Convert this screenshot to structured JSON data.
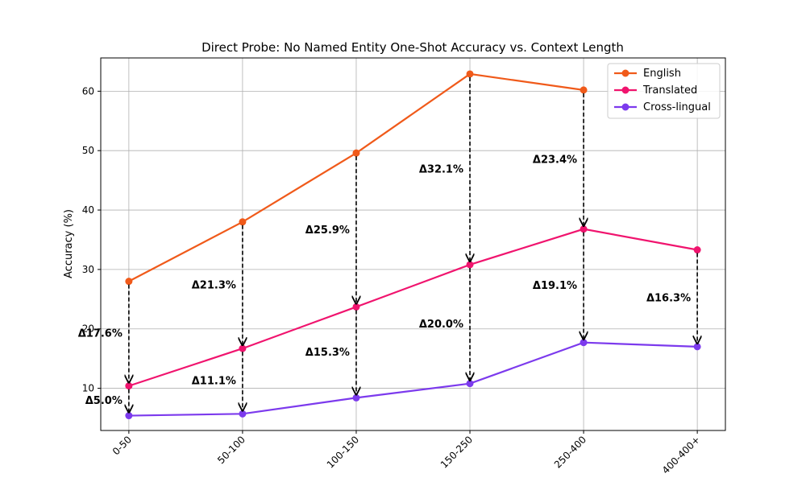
{
  "chart_data": {
    "type": "line",
    "title": "Direct Probe: No Named Entity One-Shot Accuracy vs. Context Length",
    "xlabel": "",
    "ylabel": "Accuracy (%)",
    "categories": [
      "0-50",
      "50-100",
      "100-150",
      "150-250",
      "250-400",
      "400-400+"
    ],
    "ylim": [
      2.9,
      65.6
    ],
    "yticks": [
      10,
      20,
      30,
      40,
      50,
      60
    ],
    "ytick_labels": [
      "10",
      "20",
      "30",
      "40",
      "50",
      "60"
    ],
    "grid": true,
    "legend_position": "top-right",
    "series": [
      {
        "name": "English",
        "color": "#f05a1a",
        "values": [
          28.0,
          38.0,
          49.6,
          62.9,
          60.2,
          null
        ]
      },
      {
        "name": "Translated",
        "color": "#f0146e",
        "values": [
          10.4,
          16.7,
          23.7,
          30.8,
          36.8,
          33.3
        ]
      },
      {
        "name": "Cross-lingual",
        "color": "#7c3aed",
        "values": [
          5.4,
          5.7,
          8.4,
          10.8,
          17.7,
          17.0
        ]
      }
    ],
    "annotations": [
      {
        "text": "Δ17.6%",
        "category_index": 0,
        "from": 28.0,
        "to": 10.4
      },
      {
        "text": "Δ5.0%",
        "category_index": 0,
        "from": 10.4,
        "to": 5.4
      },
      {
        "text": "Δ21.3%",
        "category_index": 1,
        "from": 38.0,
        "to": 16.7
      },
      {
        "text": "Δ11.1%",
        "category_index": 1,
        "from": 16.7,
        "to": 5.7
      },
      {
        "text": "Δ25.9%",
        "category_index": 2,
        "from": 49.6,
        "to": 23.7
      },
      {
        "text": "Δ15.3%",
        "category_index": 2,
        "from": 23.7,
        "to": 8.4
      },
      {
        "text": "Δ32.1%",
        "category_index": 3,
        "from": 62.9,
        "to": 30.8
      },
      {
        "text": "Δ20.0%",
        "category_index": 3,
        "from": 30.8,
        "to": 10.8
      },
      {
        "text": "Δ23.4%",
        "category_index": 4,
        "from": 60.2,
        "to": 36.8
      },
      {
        "text": "Δ19.1%",
        "category_index": 4,
        "from": 36.8,
        "to": 17.7
      },
      {
        "text": "Δ16.3%",
        "category_index": 5,
        "from": 33.3,
        "to": 17.0
      }
    ]
  }
}
